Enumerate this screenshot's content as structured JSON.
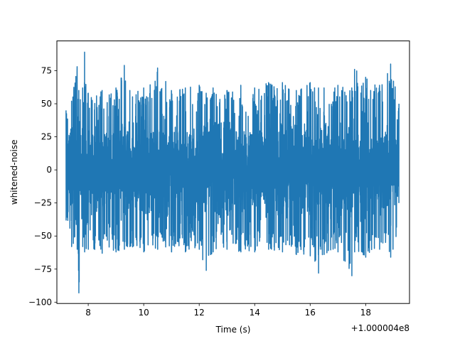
{
  "chart_data": {
    "type": "line",
    "title": "",
    "xlabel": "Time (s)",
    "ylabel": "whitened-noise",
    "x_offset_label": "+1.000004e8",
    "xlim": [
      6.87,
      19.58
    ],
    "ylim": [
      -101,
      97.5
    ],
    "x_ticks": [
      8,
      10,
      12,
      14,
      16,
      18
    ],
    "x_tick_labels": [
      "8",
      "10",
      "12",
      "14",
      "16",
      "18"
    ],
    "y_ticks": [
      -100,
      -75,
      -50,
      -25,
      0,
      25,
      50,
      75
    ],
    "y_tick_labels": [
      "−100",
      "−75",
      "−50",
      "−25",
      "0",
      "25",
      "50",
      "75"
    ],
    "grid": false,
    "legend": "none",
    "line_color": "#1f77b4",
    "series": [
      {
        "x_start": 7.2,
        "x_end": 19.2,
        "envelope": {
          "x": [
            7.2,
            7.4,
            7.6,
            7.66,
            7.8,
            7.87,
            8.0,
            8.5,
            9.0,
            9.3,
            9.5,
            10.0,
            10.5,
            11.0,
            11.5,
            12.0,
            12.25,
            12.5,
            13.0,
            13.5,
            14.0,
            14.5,
            15.0,
            15.5,
            16.0,
            16.3,
            16.5,
            17.0,
            17.5,
            17.6,
            18.0,
            18.5,
            18.9,
            19.2
          ],
          "high": [
            45,
            52,
            78,
            60,
            62,
            89,
            58,
            60,
            62,
            79,
            60,
            62,
            77,
            60,
            62,
            64,
            58,
            62,
            60,
            64,
            62,
            66,
            66,
            60,
            66,
            62,
            62,
            64,
            62,
            76,
            70,
            64,
            80,
            50
          ],
          "low": [
            -38,
            -58,
            -60,
            -93,
            -58,
            -62,
            -60,
            -63,
            -62,
            -60,
            -58,
            -62,
            -60,
            -62,
            -62,
            -60,
            -76,
            -62,
            -60,
            -62,
            -62,
            -60,
            -62,
            -64,
            -65,
            -78,
            -64,
            -62,
            -80,
            -62,
            -66,
            -60,
            -66,
            -48
          ]
        }
      }
    ]
  }
}
